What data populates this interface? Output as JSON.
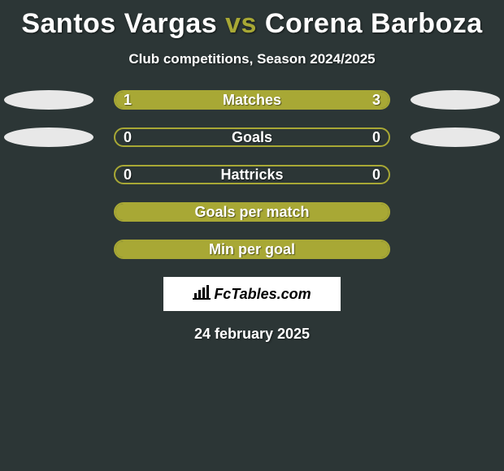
{
  "background_color": "#2c3636",
  "accent_color": "#a8a835",
  "text_color": "#ffffff",
  "ellipse_left_color": "#e8e8e8",
  "ellipse_right_color": "#e8e8e8",
  "title": {
    "left": "Santos Vargas",
    "vs": "vs",
    "right": "Corena Barboza",
    "fontsize": 34
  },
  "subtitle": "Club competitions, Season 2024/2025",
  "stats": [
    {
      "label": "Matches",
      "left_value": "1",
      "right_value": "3",
      "left_pct": 25,
      "right_pct": 75,
      "show_left_ellipse": true,
      "show_right_ellipse": true,
      "fill_mode": "split"
    },
    {
      "label": "Goals",
      "left_value": "0",
      "right_value": "0",
      "left_pct": 0,
      "right_pct": 0,
      "show_left_ellipse": true,
      "show_right_ellipse": true,
      "fill_mode": "empty"
    },
    {
      "label": "Hattricks",
      "left_value": "0",
      "right_value": "0",
      "left_pct": 0,
      "right_pct": 0,
      "show_left_ellipse": false,
      "show_right_ellipse": false,
      "fill_mode": "empty"
    },
    {
      "label": "Goals per match",
      "left_value": "",
      "right_value": "",
      "left_pct": 100,
      "right_pct": 0,
      "show_left_ellipse": false,
      "show_right_ellipse": false,
      "fill_mode": "full"
    },
    {
      "label": "Min per goal",
      "left_value": "",
      "right_value": "",
      "left_pct": 100,
      "right_pct": 0,
      "show_left_ellipse": false,
      "show_right_ellipse": false,
      "fill_mode": "full"
    }
  ],
  "logo": {
    "text": "FcTables.com"
  },
  "date": "24 february 2025"
}
